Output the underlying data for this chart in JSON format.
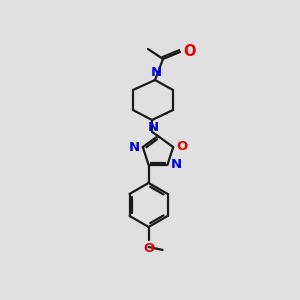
{
  "bg_color": "#e0e0e0",
  "bond_color": "#1a1a1a",
  "N_color": "#0000ee",
  "O_color": "#ee0000",
  "lw": 1.6,
  "fs": 8.5,
  "figsize": [
    3.0,
    3.0
  ],
  "dpi": 100,
  "xlim": [
    0,
    300
  ],
  "ylim": [
    0,
    300
  ]
}
